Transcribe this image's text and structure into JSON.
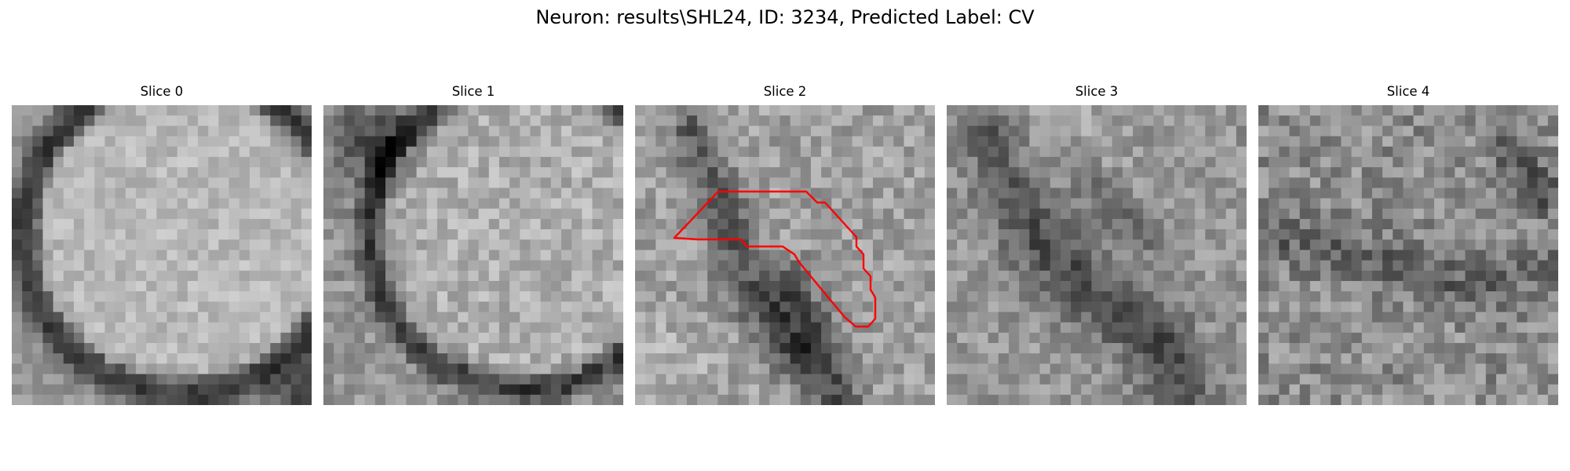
{
  "figure": {
    "title": "Neuron: results\\SHL24, ID: 3234, Predicted Label: CV"
  },
  "panels": [
    {
      "title": "Slice 0"
    },
    {
      "title": "Slice 1"
    },
    {
      "title": "Slice 2"
    },
    {
      "title": "Slice 3"
    },
    {
      "title": "Slice 4"
    }
  ],
  "colors": {
    "contour": "#ff0000",
    "colormap": "gray"
  }
}
